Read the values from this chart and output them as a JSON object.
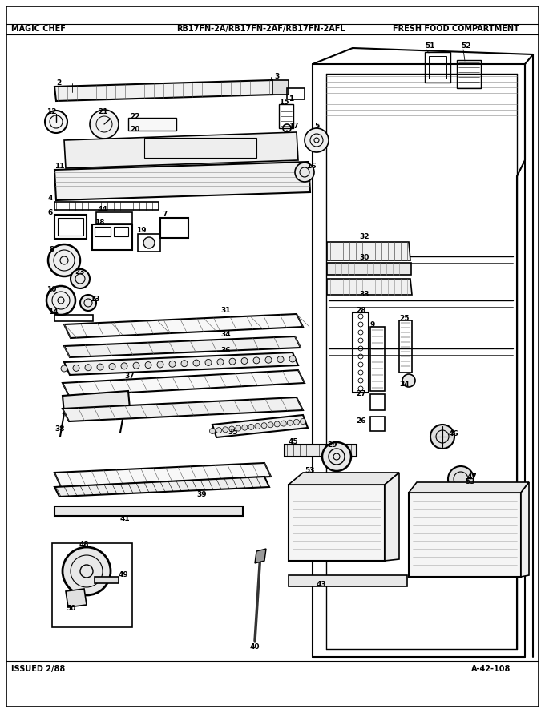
{
  "title_left": "MAGIC CHEF",
  "title_center": "RB17FN-2A/RB17FN-2AF/RB17FN-2AFL",
  "title_right": "FRESH FOOD COMPARTMENT",
  "footer_left": "ISSUED 2/88",
  "footer_right": "A-42-108",
  "bg_color": "#ffffff",
  "border_color": "#000000",
  "fig_width": 6.8,
  "fig_height": 8.9,
  "dpi": 100
}
